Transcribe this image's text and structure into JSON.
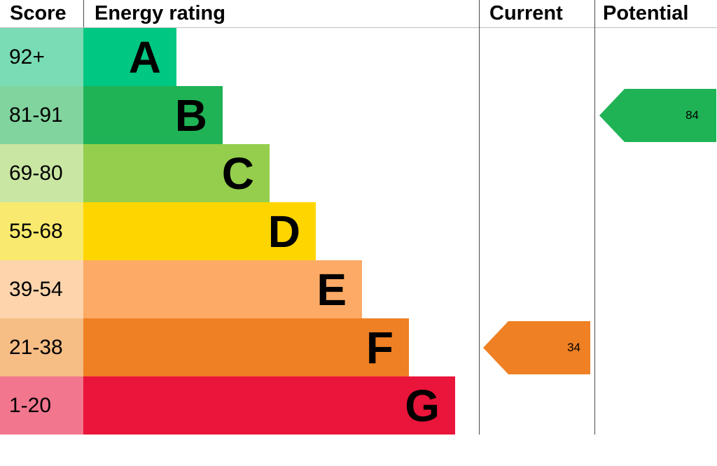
{
  "header": {
    "score": "Score",
    "rating": "Energy rating",
    "current": "Current",
    "potential": "Potential"
  },
  "chart_data": {
    "type": "bar",
    "title": "Energy rating",
    "description": "EPC energy efficiency rating chart with bands A-G, current and potential scores shown as arrows",
    "bands": [
      {
        "letter": "A",
        "score_range": "92+",
        "bar_color": "#00c781",
        "score_bg": "#7adcb4"
      },
      {
        "letter": "B",
        "score_range": "81-91",
        "bar_color": "#1fb356",
        "score_bg": "#81d49e"
      },
      {
        "letter": "C",
        "score_range": "69-80",
        "bar_color": "#94ce4c",
        "score_bg": "#c9e6a2"
      },
      {
        "letter": "D",
        "score_range": "55-68",
        "bar_color": "#ffd500",
        "score_bg": "#f9e96e"
      },
      {
        "letter": "E",
        "score_range": "39-54",
        "bar_color": "#fcaa65",
        "score_bg": "#fdd4ab"
      },
      {
        "letter": "F",
        "score_range": "21-38",
        "bar_color": "#ef8023",
        "score_bg": "#f6bd85"
      },
      {
        "letter": "G",
        "score_range": "1-20",
        "bar_color": "#e9153b",
        "score_bg": "#f2778e"
      }
    ],
    "current": {
      "value": 34,
      "band": "F",
      "color": "#ef8023"
    },
    "potential": {
      "value": 84,
      "band": "B",
      "color": "#1fb356"
    }
  }
}
